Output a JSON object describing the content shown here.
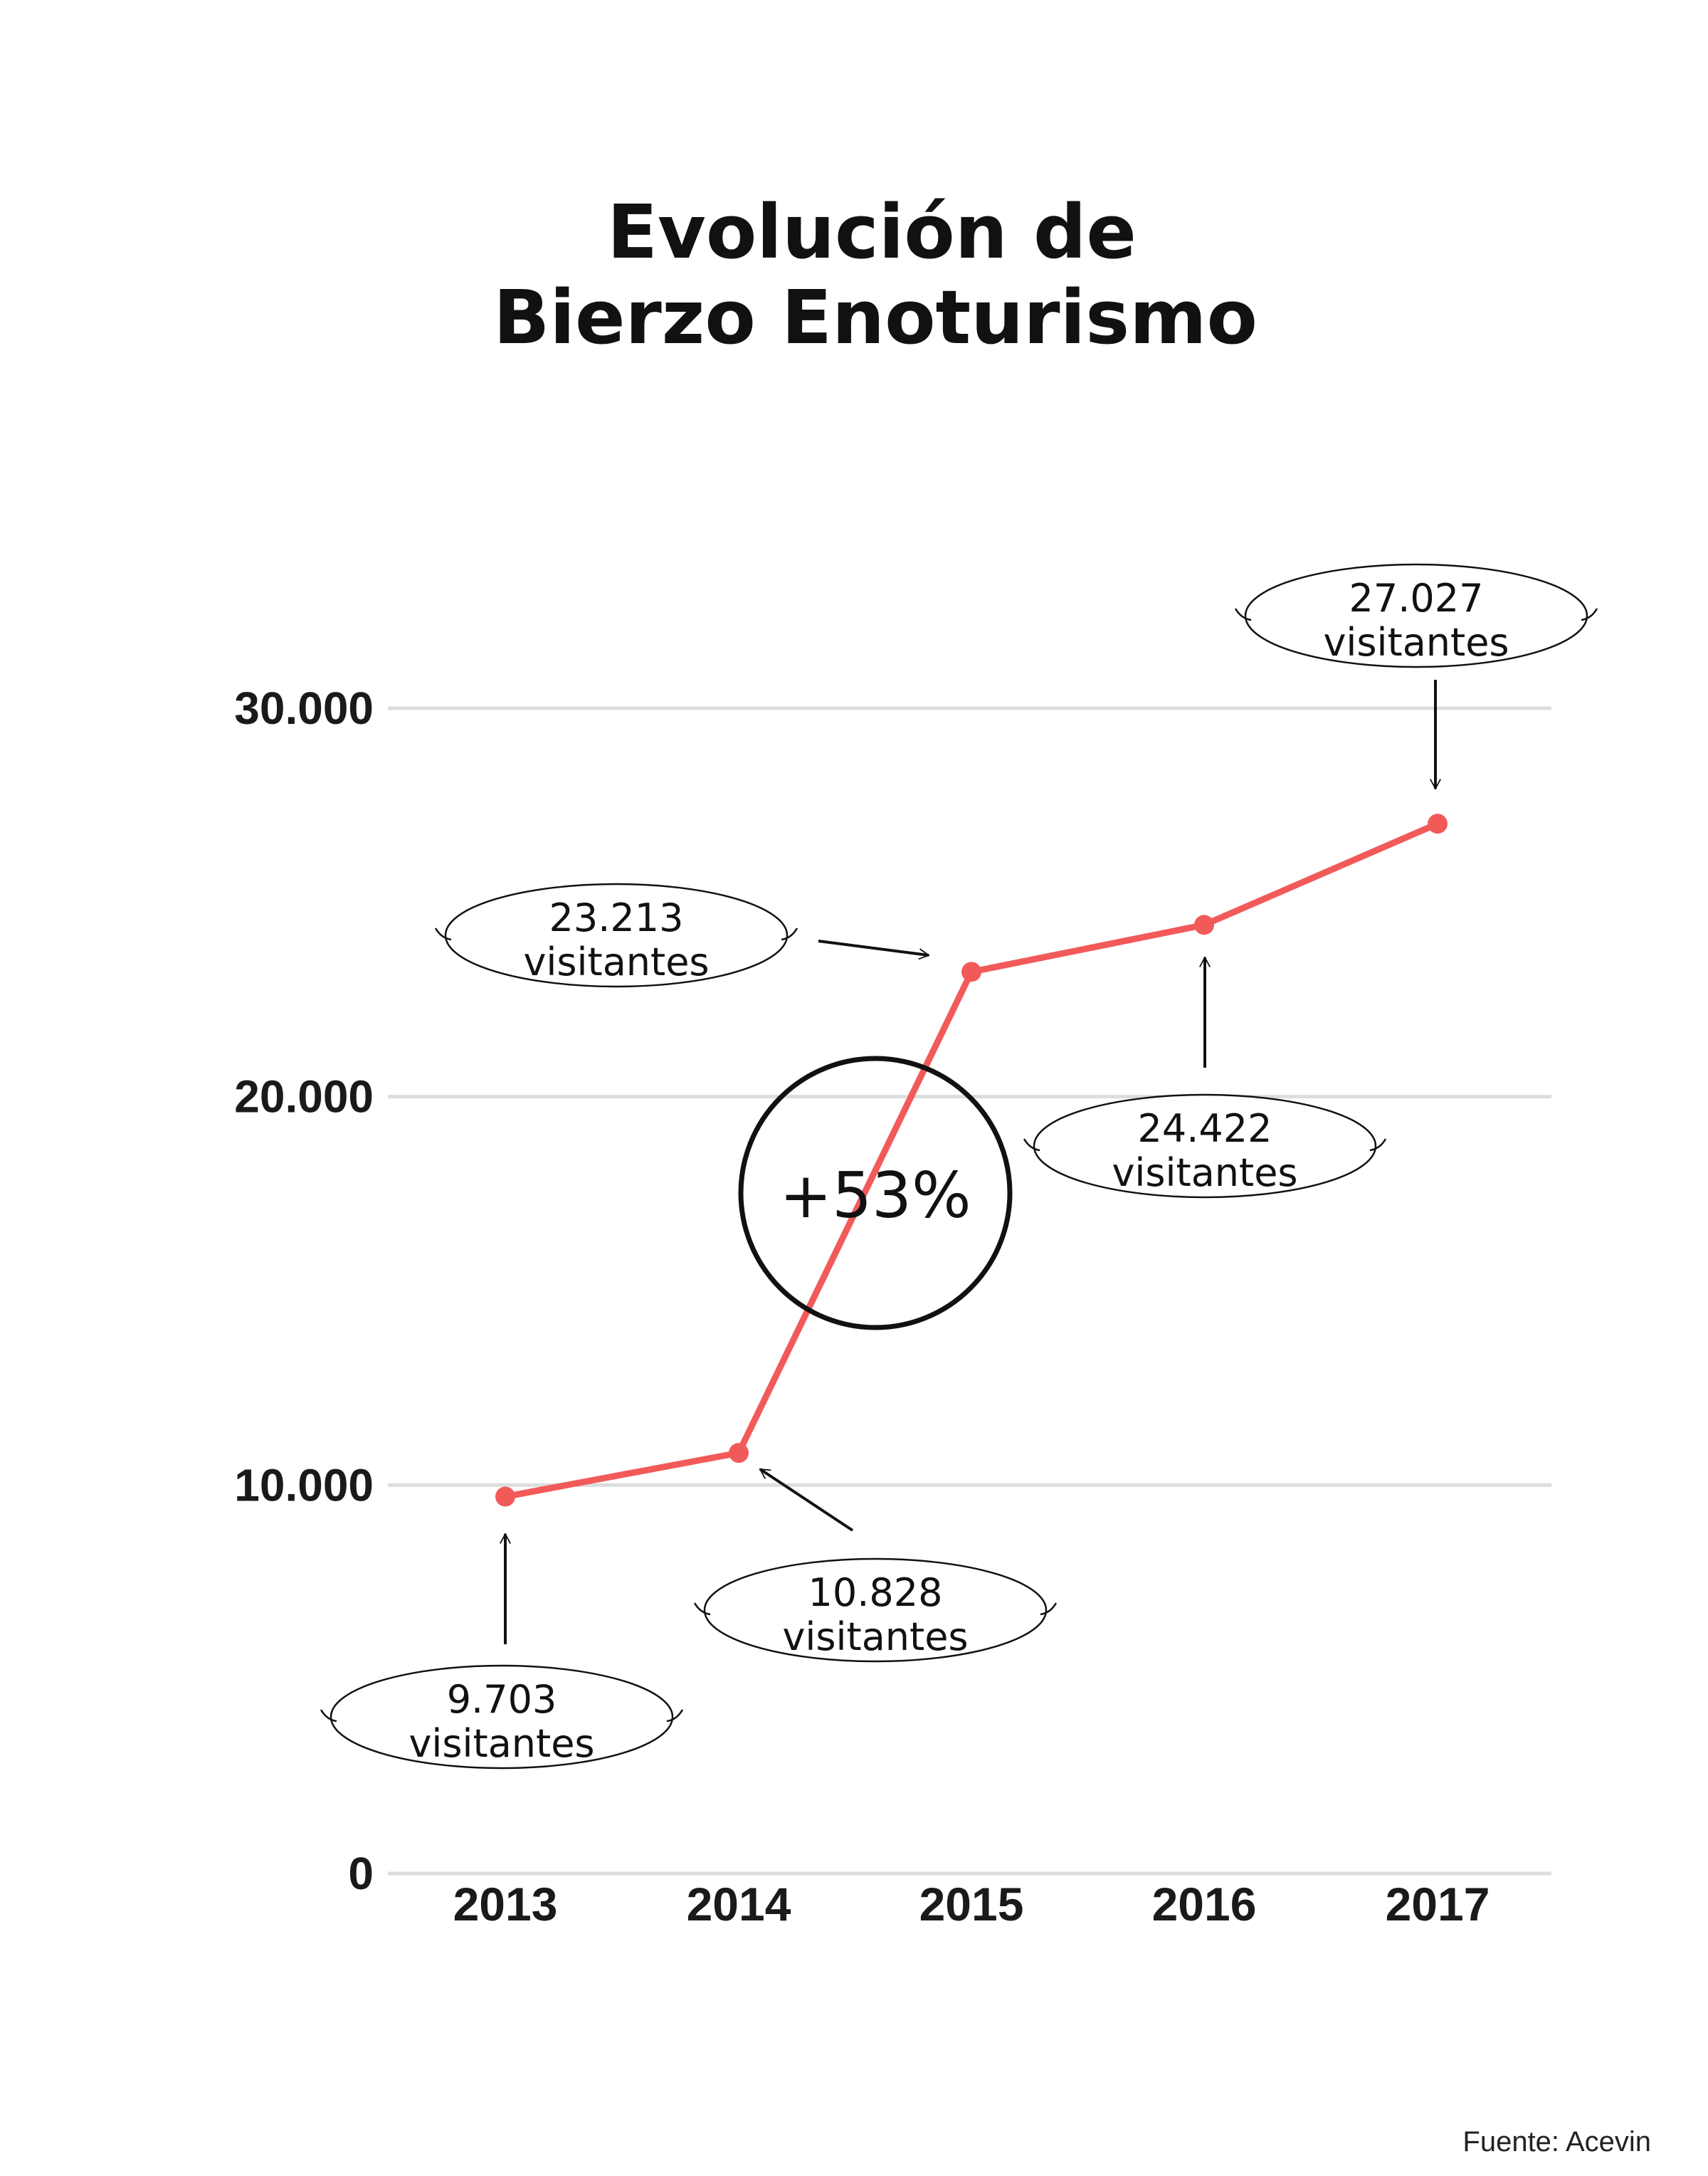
{
  "title_lines": [
    "Evolución de",
    "Bierzo Enoturismo"
  ],
  "source": "Fuente: Acevin",
  "highlight": "+53%",
  "colors": {
    "line": "#f25a5a",
    "grid": "#dddddd",
    "ink": "#111111"
  },
  "chart_data": {
    "type": "line",
    "title": "Evolución de Bierzo Enoturismo",
    "xlabel": "",
    "ylabel": "",
    "categories": [
      "2013",
      "2014",
      "2015",
      "2016",
      "2017"
    ],
    "values": [
      9703,
      10828,
      23213,
      24422,
      27027
    ],
    "ylim": [
      0,
      30000
    ],
    "yticks": [
      0,
      10000,
      20000,
      30000
    ],
    "ytick_labels": [
      "0",
      "10.000",
      "20.000",
      "30.000"
    ],
    "grid": true,
    "data_labels": [
      {
        "value": "9.703",
        "unit": "visitantes"
      },
      {
        "value": "10.828",
        "unit": "visitantes"
      },
      {
        "value": "23.213",
        "unit": "visitantes"
      },
      {
        "value": "24.422",
        "unit": "visitantes"
      },
      {
        "value": "27.027",
        "unit": "visitantes"
      }
    ]
  }
}
